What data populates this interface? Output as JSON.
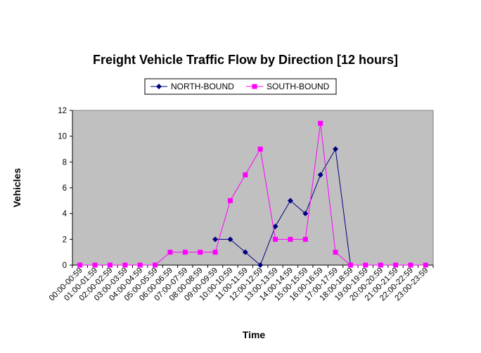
{
  "chart_data": {
    "type": "line",
    "title": "Freight Vehicle Traffic Flow by Direction [12 hours]",
    "xlabel": "Time",
    "ylabel": "Vehicles",
    "ylim": [
      0,
      12
    ],
    "yticks": [
      0,
      2,
      4,
      6,
      8,
      10,
      12
    ],
    "plot_background": "#c0c0c0",
    "grid": false,
    "legend_position": "top-center",
    "categories": [
      "00:00-00:59",
      "01:00-01:59",
      "02:00-02:59",
      "03:00-03:59",
      "04:00-04:59",
      "05:00-05:59",
      "06:00-06:59",
      "07:00-07:59",
      "08:00-08:59",
      "09:00-09:59",
      "10:00-10:59",
      "11:00-11:59",
      "12:00-12:59",
      "13:00-13:59",
      "14:00-14:59",
      "15:00-15:59",
      "16:00-16:59",
      "17:00-17:59",
      "18:00-18:59",
      "19:00-19:59",
      "20:00-20:59",
      "21:00-21:59",
      "22:00-22:59",
      "23:00-23:59"
    ],
    "series": [
      {
        "name": "NORTH-BOUND",
        "color": "#000080",
        "marker": "diamond",
        "values": [
          null,
          null,
          null,
          null,
          null,
          null,
          null,
          null,
          null,
          2,
          2,
          1,
          0,
          3,
          5,
          4,
          7,
          9,
          0,
          null,
          null,
          null,
          null,
          null
        ]
      },
      {
        "name": "SOUTH-BOUND",
        "color": "#ff00ff",
        "marker": "square",
        "values": [
          0,
          0,
          0,
          0,
          0,
          0,
          1,
          1,
          1,
          1,
          5,
          7,
          9,
          2,
          2,
          2,
          11,
          1,
          0,
          0,
          0,
          0,
          0,
          0
        ]
      }
    ]
  }
}
